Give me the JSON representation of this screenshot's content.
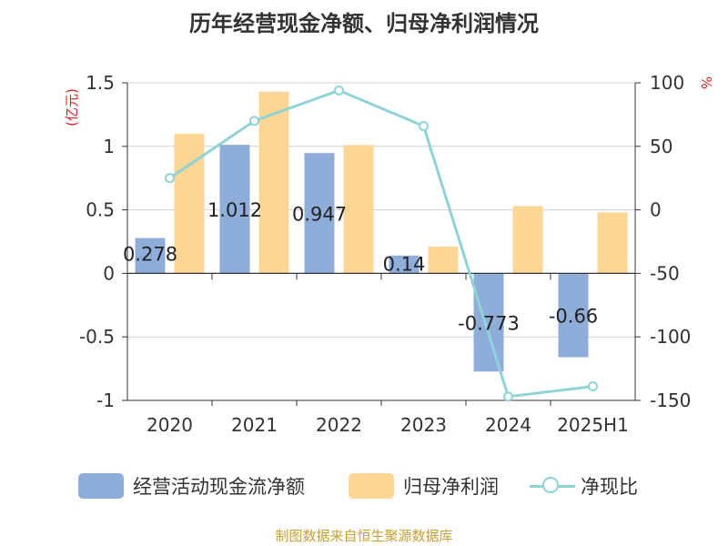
{
  "title": "历年经营现金净额、归母净利润情况",
  "source": "制图数据来自恒生聚源数据库",
  "colors": {
    "cash": "#8eadd9",
    "profit": "#fdd694",
    "ratio": "#8dd3d8",
    "axis_unit": "#e02020",
    "source": "#c8a032"
  },
  "chart_data": {
    "type": "bar",
    "categories": [
      "2020",
      "2021",
      "2022",
      "2023",
      "2024",
      "2025H1"
    ],
    "series": [
      {
        "name": "经营活动现金流净额",
        "type": "bar",
        "axis": "left",
        "values": [
          0.278,
          1.012,
          0.947,
          0.14,
          -0.773,
          -0.66
        ],
        "labels": [
          "0.278",
          "1.012",
          "0.947",
          "0.14",
          "-0.773",
          "-0.66"
        ]
      },
      {
        "name": "归母净利润",
        "type": "bar",
        "axis": "left",
        "values": [
          1.1,
          1.43,
          1.01,
          0.21,
          0.53,
          0.48
        ]
      },
      {
        "name": "净现比",
        "type": "line",
        "axis": "right",
        "values": [
          25,
          70,
          94,
          66,
          -147,
          -139
        ]
      }
    ],
    "y_left": {
      "label": "(亿元)",
      "lim": [
        -1,
        1.5
      ],
      "ticks": [
        -1,
        -0.5,
        0,
        0.5,
        1,
        1.5
      ],
      "tick_labels": [
        "-1",
        "-0.5",
        "0",
        "0.5",
        "1",
        "1.5"
      ]
    },
    "y_right": {
      "label": "%",
      "lim": [
        -150,
        100
      ],
      "ticks": [
        -150,
        -100,
        -50,
        0,
        50,
        100
      ],
      "tick_labels": [
        "-150",
        "-100",
        "-50",
        "0",
        "50",
        "100"
      ]
    },
    "grid": true,
    "legend": "bottom"
  }
}
